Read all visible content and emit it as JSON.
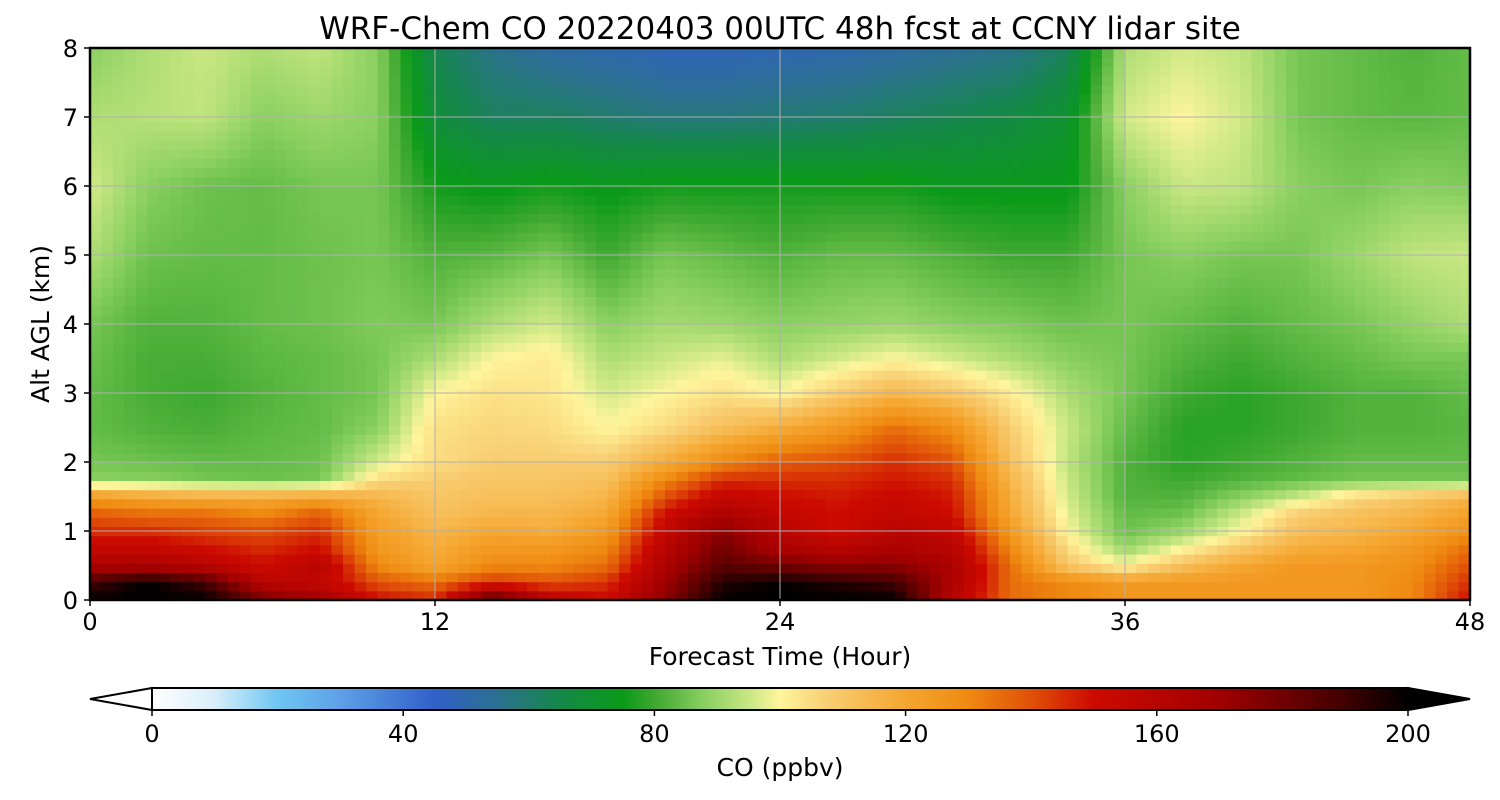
{
  "chart_data": {
    "type": "heatmap",
    "title": "WRF-Chem CO  20220403 00UTC 48h fcst at CCNY lidar site",
    "xlabel": "Forecast Time (Hour)",
    "ylabel": "Alt AGL (km)",
    "xlim": [
      0,
      48
    ],
    "ylim": [
      0,
      8
    ],
    "xticks": [
      0,
      12,
      24,
      36,
      48
    ],
    "yticks": [
      0,
      1,
      2,
      3,
      4,
      5,
      6,
      7,
      8
    ],
    "grid": true,
    "x": [
      0,
      2,
      4,
      6,
      8,
      10,
      12,
      14,
      16,
      18,
      20,
      22,
      24,
      26,
      28,
      30,
      32,
      34,
      36,
      38,
      40,
      42,
      44,
      46,
      48
    ],
    "y": [
      0,
      0.25,
      0.5,
      0.75,
      1,
      1.25,
      1.5,
      1.75,
      2,
      2.5,
      3,
      3.5,
      4,
      5,
      6,
      7,
      8
    ],
    "z": [
      [
        200,
        200,
        200,
        180,
        170,
        150,
        145,
        190,
        160,
        150,
        175,
        200,
        200,
        200,
        200,
        160,
        135,
        130,
        125,
        125,
        125,
        125,
        125,
        130,
        150
      ],
      [
        190,
        200,
        190,
        160,
        155,
        140,
        135,
        145,
        140,
        145,
        170,
        195,
        200,
        195,
        190,
        165,
        135,
        130,
        125,
        125,
        125,
        125,
        125,
        130,
        145
      ],
      [
        165,
        165,
        160,
        150,
        160,
        130,
        120,
        130,
        130,
        135,
        165,
        185,
        180,
        175,
        175,
        165,
        135,
        110,
        100,
        112,
        120,
        125,
        125,
        128,
        140
      ],
      [
        155,
        155,
        150,
        145,
        150,
        125,
        118,
        125,
        125,
        130,
        160,
        180,
        165,
        160,
        165,
        160,
        130,
        105,
        90,
        100,
        110,
        118,
        120,
        125,
        135
      ],
      [
        145,
        145,
        142,
        140,
        145,
        123,
        115,
        120,
        118,
        125,
        155,
        175,
        160,
        150,
        160,
        155,
        125,
        100,
        85,
        90,
        100,
        112,
        115,
        120,
        128
      ],
      [
        138,
        135,
        135,
        130,
        138,
        120,
        112,
        115,
        115,
        120,
        150,
        165,
        155,
        150,
        155,
        150,
        120,
        98,
        84,
        85,
        95,
        108,
        112,
        115,
        122
      ],
      [
        125,
        120,
        118,
        118,
        120,
        115,
        110,
        112,
        112,
        115,
        140,
        155,
        150,
        148,
        152,
        148,
        118,
        96,
        82,
        82,
        88,
        95,
        105,
        110,
        115
      ],
      [
        88,
        88,
        86,
        85,
        86,
        105,
        108,
        110,
        110,
        112,
        130,
        145,
        145,
        145,
        148,
        145,
        115,
        95,
        82,
        80,
        82,
        84,
        86,
        86,
        86
      ],
      [
        86,
        85,
        84,
        84,
        85,
        96,
        105,
        108,
        108,
        108,
        118,
        130,
        138,
        140,
        145,
        140,
        112,
        94,
        82,
        78,
        80,
        82,
        84,
        84,
        84
      ],
      [
        84,
        82,
        81,
        83,
        84,
        88,
        104,
        106,
        105,
        100,
        105,
        112,
        118,
        125,
        135,
        128,
        108,
        95,
        84,
        78,
        78,
        80,
        82,
        82,
        83
      ],
      [
        84,
        81,
        80,
        82,
        84,
        86,
        100,
        104,
        103,
        96,
        100,
        104,
        100,
        108,
        115,
        110,
        102,
        92,
        86,
        80,
        78,
        80,
        82,
        82,
        84
      ],
      [
        85,
        81,
        81,
        83,
        84,
        86,
        92,
        100,
        102,
        92,
        95,
        98,
        92,
        96,
        100,
        96,
        92,
        88,
        86,
        82,
        80,
        82,
        84,
        86,
        86
      ],
      [
        86,
        82,
        82,
        84,
        85,
        87,
        86,
        92,
        96,
        88,
        91,
        90,
        88,
        89,
        90,
        88,
        87,
        85,
        86,
        84,
        82,
        84,
        86,
        89,
        92
      ],
      [
        92,
        85,
        84,
        84,
        85,
        86,
        82,
        83,
        86,
        80,
        86,
        84,
        82,
        84,
        84,
        82,
        80,
        80,
        86,
        88,
        86,
        86,
        90,
        94,
        95
      ],
      [
        96,
        88,
        85,
        84,
        86,
        86,
        76,
        74,
        76,
        74,
        76,
        76,
        76,
        76,
        76,
        74,
        74,
        74,
        88,
        95,
        94,
        88,
        86,
        88,
        87
      ],
      [
        92,
        93,
        94,
        88,
        90,
        88,
        68,
        62,
        62,
        60,
        58,
        58,
        59,
        60,
        62,
        64,
        66,
        70,
        96,
        100,
        96,
        86,
        84,
        83,
        84
      ],
      [
        88,
        92,
        95,
        92,
        94,
        88,
        64,
        56,
        52,
        50,
        48,
        48,
        49,
        50,
        52,
        54,
        56,
        62,
        92,
        96,
        94,
        86,
        84,
        82,
        84
      ]
    ],
    "colorbar": {
      "label": "CO  (ppbv)",
      "vmin": 0,
      "vmax": 200,
      "ticks": [
        0,
        40,
        80,
        120,
        160,
        200
      ],
      "extend": "both",
      "color_stops": [
        [
          0,
          "#ffffff"
        ],
        [
          10,
          "#d8eefa"
        ],
        [
          20,
          "#6ec6f2"
        ],
        [
          30,
          "#5ea0e8"
        ],
        [
          45,
          "#3060c8"
        ],
        [
          55,
          "#2c7090"
        ],
        [
          65,
          "#148848"
        ],
        [
          75,
          "#0a9a18"
        ],
        [
          80,
          "#3ea830"
        ],
        [
          88,
          "#8ad060"
        ],
        [
          96,
          "#d2ea88"
        ],
        [
          100,
          "#fff59c"
        ],
        [
          108,
          "#f8cc70"
        ],
        [
          120,
          "#f5a630"
        ],
        [
          130,
          "#ef8a10"
        ],
        [
          140,
          "#e05008"
        ],
        [
          150,
          "#cc0a00"
        ],
        [
          170,
          "#a00000"
        ],
        [
          190,
          "#400000"
        ],
        [
          200,
          "#000000"
        ]
      ],
      "over_color": "#000000",
      "under_color": "#ffffff"
    }
  }
}
